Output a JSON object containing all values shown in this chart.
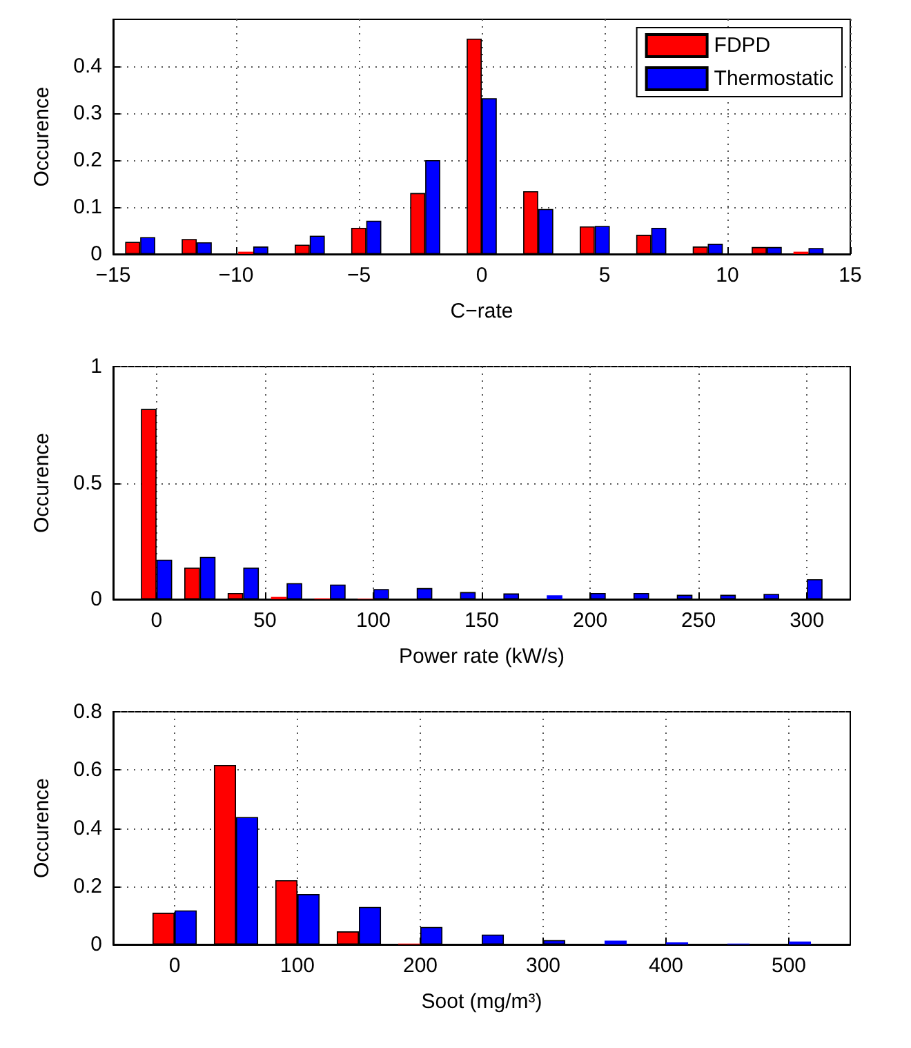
{
  "chart_data": [
    {
      "type": "bar",
      "xlabel": "C−rate",
      "ylabel": "Occurence",
      "x": [
        -13.9,
        -11.6,
        -9.3,
        -7.0,
        -4.7,
        -2.3,
        0,
        2.3,
        4.6,
        6.9,
        9.2,
        11.6,
        13.3
      ],
      "series": [
        {
          "name": "FDPD",
          "color": "#ff0000",
          "values": [
            0.026,
            0.032,
            0.005,
            0.02,
            0.056,
            0.13,
            0.459,
            0.134,
            0.059,
            0.041,
            0.016,
            0.015,
            0.005
          ]
        },
        {
          "name": "Thermostatic",
          "color": "#0000ff",
          "values": [
            0.036,
            0.025,
            0.016,
            0.039,
            0.071,
            0.2,
            0.332,
            0.096,
            0.06,
            0.056,
            0.022,
            0.015,
            0.013
          ]
        }
      ],
      "xlim": [
        -15,
        15
      ],
      "xticks": [
        {
          "value": -15,
          "label": "−15"
        },
        {
          "value": -10,
          "label": "−10"
        },
        {
          "value": -5,
          "label": "−5"
        },
        0,
        5,
        10,
        15
      ],
      "ylim": [
        0,
        0.5
      ],
      "yticks": [
        0,
        0.1,
        0.2,
        0.3,
        0.4
      ],
      "grid": true,
      "legend": "top right"
    },
    {
      "type": "bar",
      "xlabel": "Power rate (kW/s)",
      "ylabel": "Occurence",
      "x": [
        0,
        20,
        40,
        60,
        80,
        100,
        120,
        140,
        160,
        180,
        200,
        220,
        240,
        260,
        280,
        300
      ],
      "series": [
        {
          "color": "#ff0000",
          "values": [
            0.818,
            0.136,
            0.027,
            0.01,
            0.004,
            0.002,
            0,
            0,
            0,
            0,
            0,
            0,
            0,
            0,
            0,
            0
          ]
        },
        {
          "color": "#0000ff",
          "values": [
            0.17,
            0.182,
            0.136,
            0.069,
            0.063,
            0.044,
            0.048,
            0.031,
            0.025,
            0.017,
            0.027,
            0.027,
            0.019,
            0.019,
            0.023,
            0.086
          ]
        }
      ],
      "xlim": [
        -20,
        320
      ],
      "xticks": [
        0,
        50,
        100,
        150,
        200,
        250,
        300
      ],
      "ylim": [
        0,
        1
      ],
      "yticks": [
        0,
        0.5,
        1
      ],
      "grid": true
    },
    {
      "type": "bar",
      "xlabel": "Soot (mg/m³)",
      "ylabel": "Occurence",
      "x": [
        0,
        50,
        100,
        150,
        200,
        250,
        300,
        350,
        400,
        450,
        500
      ],
      "series": [
        {
          "color": "#ff0000",
          "values": [
            0.109,
            0.617,
            0.221,
            0.045,
            0.003,
            0,
            0,
            0,
            0,
            0,
            0
          ]
        },
        {
          "color": "#0000ff",
          "values": [
            0.117,
            0.438,
            0.173,
            0.129,
            0.06,
            0.034,
            0.015,
            0.013,
            0.007,
            0.003,
            0.01
          ]
        }
      ],
      "xlim": [
        -50,
        550
      ],
      "xticks": [
        0,
        100,
        200,
        300,
        400,
        500
      ],
      "ylim": [
        0,
        0.8
      ],
      "yticks": [
        0,
        0.2,
        0.4,
        0.6,
        0.8
      ],
      "grid": true
    }
  ]
}
